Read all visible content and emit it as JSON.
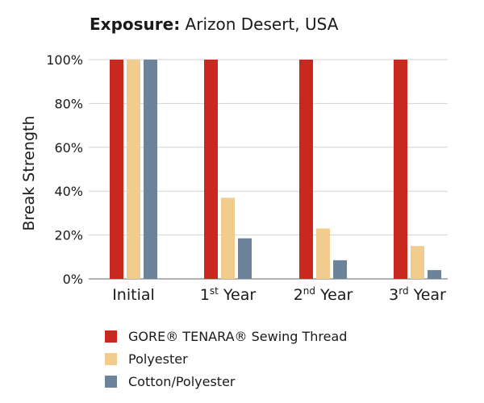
{
  "title": {
    "prefix": "Exposure:",
    "text": "Arizon Desert, USA"
  },
  "chart_data": {
    "type": "bar",
    "title": "Exposure: Arizon Desert, USA",
    "ylabel": "Break Strength",
    "xlabel": "",
    "ylim": [
      0,
      100
    ],
    "yticks": [
      0,
      20,
      40,
      60,
      80,
      100
    ],
    "ytick_labels": [
      "0%",
      "20%",
      "40%",
      "60%",
      "80%",
      "100%"
    ],
    "grid": true,
    "legend_position": "bottom",
    "categories": [
      {
        "base": "Initial",
        "sup": "",
        "rest": ""
      },
      {
        "base": "1",
        "sup": "st",
        "rest": " Year"
      },
      {
        "base": "2",
        "sup": "nd",
        "rest": " Year"
      },
      {
        "base": "3",
        "sup": "rd",
        "rest": " Year"
      }
    ],
    "category_labels": [
      "Initial",
      "1st Year",
      "2nd Year",
      "3rd Year"
    ],
    "series": [
      {
        "name": "GORE® TENARA® Sewing Thread",
        "color": "#c8281e",
        "values": [
          100,
          100,
          100,
          100
        ]
      },
      {
        "name": "Polyester",
        "color": "#f2cc8e",
        "values": [
          100,
          37,
          23,
          15
        ]
      },
      {
        "name": "Cotton/Polyester",
        "color": "#6c8399",
        "values": [
          100,
          18.5,
          8.5,
          4
        ]
      }
    ]
  }
}
